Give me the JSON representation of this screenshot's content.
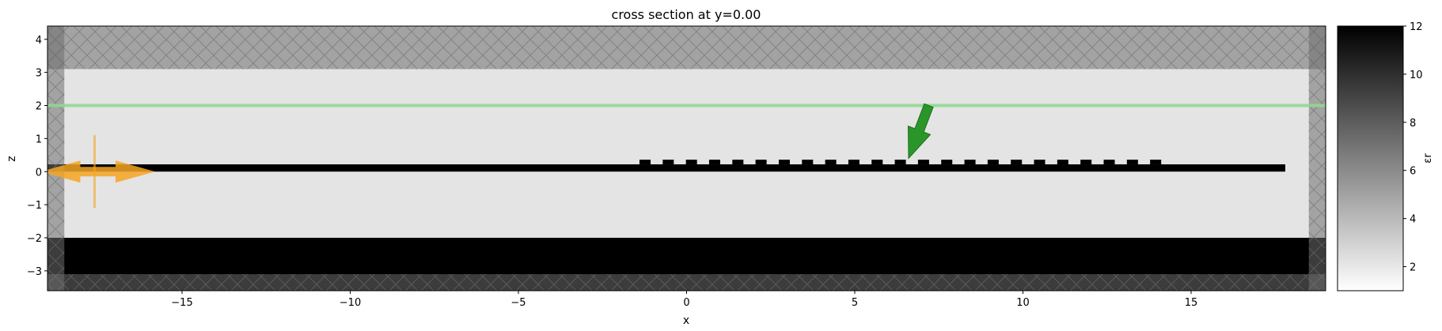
{
  "chart_data": {
    "type": "heatmap",
    "title": "cross section at y=0.00",
    "xlabel": "x",
    "ylabel": "z",
    "xlim": [
      -19.0,
      19.0
    ],
    "ylim": [
      -3.6,
      4.4
    ],
    "xticks": [
      -15,
      -10,
      -5,
      0,
      5,
      10,
      15
    ],
    "xtick_labels": [
      "−15",
      "−10",
      "−5",
      "0",
      "5",
      "10",
      "15"
    ],
    "yticks": [
      -3,
      -2,
      -1,
      0,
      1,
      2,
      3,
      4
    ],
    "ytick_labels": [
      "−3",
      "−2",
      "−1",
      "0",
      "1",
      "2",
      "3",
      "4"
    ],
    "colorbar": {
      "label": "εr",
      "range": [
        1.0,
        12.0
      ],
      "ticks": [
        2,
        4,
        6,
        8,
        10,
        12
      ],
      "tick_labels": [
        "2",
        "4",
        "6",
        "8",
        "10",
        "12"
      ]
    },
    "background": {
      "permittivity": 2.1,
      "xlim": [
        -19.0,
        19.0
      ],
      "zlim": [
        -3.6,
        4.4
      ]
    },
    "substrate": {
      "permittivity": 12.0,
      "xlim": [
        -19.0,
        19.0
      ],
      "zlim": [
        -3.6,
        -2.0
      ]
    },
    "waveguide": {
      "permittivity": 12.0,
      "xlim": [
        -19.0,
        17.8
      ],
      "zlim": [
        0.0,
        0.22
      ]
    },
    "grating": {
      "permittivity": 12.0,
      "x_start": -1.4,
      "period": 0.69,
      "tooth_width": 0.33,
      "count": 23,
      "zlim": [
        0.22,
        0.36
      ]
    },
    "pml_regions": [
      {
        "side": "left",
        "xlim": [
          -19.0,
          -18.5
        ]
      },
      {
        "side": "right",
        "xlim": [
          18.5,
          19.0
        ]
      },
      {
        "side": "top",
        "zlim": [
          3.1,
          4.4
        ]
      },
      {
        "side": "bottom",
        "zlim": [
          -3.6,
          -3.1
        ]
      }
    ],
    "monitor": {
      "z": 2.0,
      "color": "#90d890"
    },
    "mode_source": {
      "x": -17.6,
      "zlim": [
        -1.1,
        1.1
      ],
      "direction": "±x",
      "color": "#f5a623"
    },
    "plane_wave_source": {
      "tail": [
        7.2,
        2.0
      ],
      "head": [
        6.6,
        0.4
      ],
      "color": "#2a962a"
    }
  }
}
